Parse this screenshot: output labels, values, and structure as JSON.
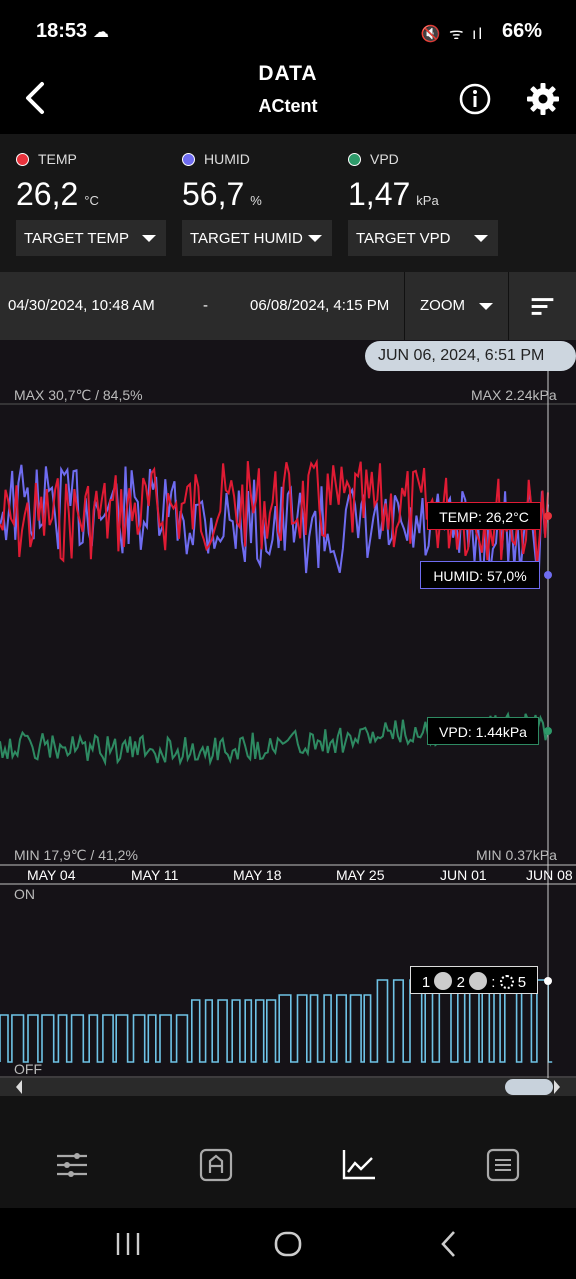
{
  "status": {
    "time": "18:53",
    "icons": "🔇 ᯤ ıl",
    "battery": "66%"
  },
  "header": {
    "title": "DATA",
    "subtitle": "ACtent"
  },
  "readings": [
    {
      "name": "TEMP",
      "value": "26,2",
      "unit": "°C",
      "color": "#e8323c",
      "target": "TARGET TEMP"
    },
    {
      "name": "HUMID",
      "value": "56,7",
      "unit": "%",
      "color": "#6f6cf0",
      "target": "TARGET HUMID"
    },
    {
      "name": "VPD",
      "value": "1,47",
      "unit": "kPa",
      "color": "#2e9a6a",
      "target": "TARGET VPD"
    }
  ],
  "range": {
    "from": "04/30/2024, 10:48 AM",
    "dash": "-",
    "to": "06/08/2024, 4:15 PM",
    "zoom": "ZOOM"
  },
  "chart": {
    "cursor_date": "JUN 06, 2024, 6:51 PM",
    "max_left": "MAX 30,7℃ / 84,5%",
    "max_right": "MAX 2.24kPa",
    "min_left": "MIN 17,9℃ / 41,2%",
    "min_right": "MIN 0.37kPa",
    "temp_tag": "TEMP: 26,2°C",
    "humid_tag": "HUMID: 57,0%",
    "vpd_tag": "VPD: 1.44kPa",
    "on_label": "ON",
    "off_label": "OFF",
    "device_tag_a": "1",
    "device_tag_b": "2",
    "device_tag_c": ":",
    "device_tag_d": "5",
    "x_ticks": [
      "MAY 04",
      "MAY 11",
      "MAY 18",
      "MAY 25",
      "JUN 01",
      "JUN 08"
    ]
  },
  "chart_data": {
    "type": "line",
    "x_ticks": [
      "MAY 04",
      "MAY 11",
      "MAY 18",
      "MAY 25",
      "JUN 01",
      "JUN 08"
    ],
    "series": [
      {
        "name": "TEMP",
        "color": "#e8323c",
        "unit": "°C",
        "current": 26.2,
        "min": 17.9,
        "max": 30.7
      },
      {
        "name": "HUMID",
        "color": "#6f6cf0",
        "unit": "%",
        "current": 57.0,
        "min": 41.2,
        "max": 84.5
      },
      {
        "name": "VPD",
        "color": "#2e9a6a",
        "unit": "kPa",
        "current": 1.44,
        "min": 0.37,
        "max": 2.24
      }
    ]
  },
  "nav": [
    "sliders-icon",
    "auto-mode-icon",
    "chart-icon",
    "list-icon"
  ]
}
